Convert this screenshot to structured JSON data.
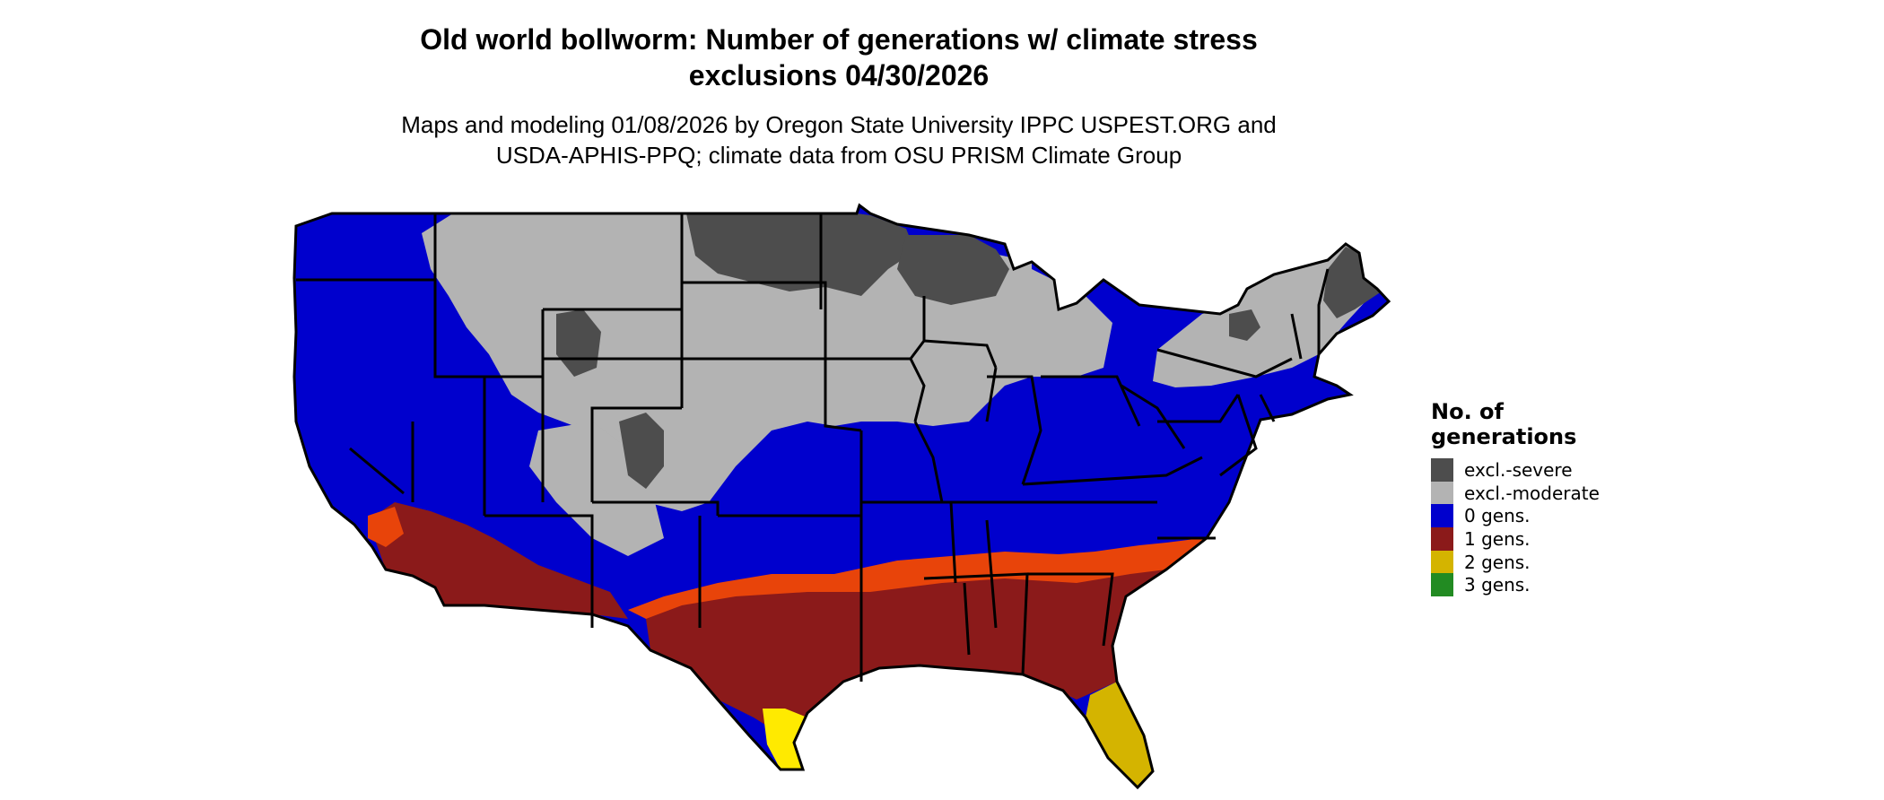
{
  "title": {
    "line1": "Old world bollworm: Number of generations w/ climate stress",
    "line2": "exclusions 04/30/2026"
  },
  "subtitle": {
    "line1": "Maps and modeling 01/08/2026 by Oregon State University IPPC USPEST.ORG and",
    "line2": "USDA-APHIS-PPQ; climate data from OSU PRISM Climate Group"
  },
  "legend": {
    "title_line1": "No. of",
    "title_line2": "generations",
    "items": [
      {
        "label": "excl.-severe",
        "color": "#4d4d4d"
      },
      {
        "label": "excl.-moderate",
        "color": "#b3b3b3"
      },
      {
        "label": "0 gens.",
        "color": "#0000cd"
      },
      {
        "label": "1 gens.",
        "color": "#8b1a1a"
      },
      {
        "label": "2 gens.",
        "color": "#d4b400"
      },
      {
        "label": "3 gens.",
        "color": "#228b22"
      }
    ]
  },
  "map_colors": {
    "excl_severe": "#4d4d4d",
    "excl_moderate": "#b3b3b3",
    "zero_gens": "#0000cd",
    "one_gens": "#8b1a1a",
    "one_gens_light": "#e8440a",
    "two_gens": "#d4b400",
    "two_gens_bright": "#ffea00",
    "borders": "#000000"
  }
}
